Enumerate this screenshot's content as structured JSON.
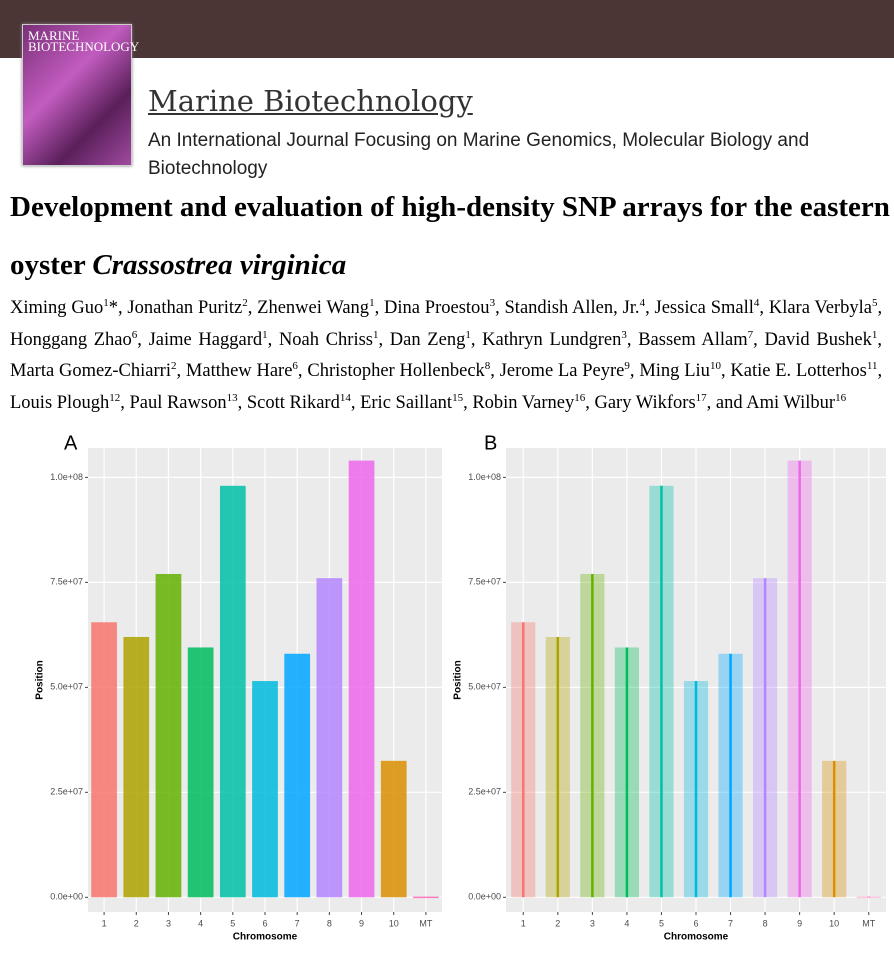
{
  "journal": {
    "cover_title": "MARINE BIOTECHNOLOGY",
    "name": "Marine Biotechnology",
    "subtitle": "An International Journal Focusing on Marine Genomics, Molecular Biology and Biotechnology"
  },
  "title": {
    "text": "Development and evaluation of high-density SNP arrays for the eastern oyster",
    "species": "Crassostrea virginica"
  },
  "authors": [
    {
      "name": "Ximing Guo",
      "aff": "1",
      "mark": "*"
    },
    {
      "name": "Jonathan Puritz",
      "aff": "2"
    },
    {
      "name": "Zhenwei Wang",
      "aff": "1"
    },
    {
      "name": "Dina Proestou",
      "aff": "3"
    },
    {
      "name": "Standish Allen, Jr.",
      "aff": "4"
    },
    {
      "name": "Jessica Small",
      "aff": "4"
    },
    {
      "name": "Klara Verbyla",
      "aff": "5"
    },
    {
      "name": "Honggang Zhao",
      "aff": "6"
    },
    {
      "name": "Jaime Haggard",
      "aff": "1"
    },
    {
      "name": "Noah Chriss",
      "aff": "1"
    },
    {
      "name": "Dan Zeng",
      "aff": "1"
    },
    {
      "name": "Kathryn Lundgren",
      "aff": "3"
    },
    {
      "name": "Bassem Allam",
      "aff": "7"
    },
    {
      "name": "David Bushek",
      "aff": "1"
    },
    {
      "name": "Marta Gomez-Chiarri",
      "aff": "2"
    },
    {
      "name": "Matthew Hare",
      "aff": "6"
    },
    {
      "name": "Christopher Hollenbeck",
      "aff": "8"
    },
    {
      "name": "Jerome La Peyre",
      "aff": "9"
    },
    {
      "name": "Ming Liu",
      "aff": "10"
    },
    {
      "name": "Katie E. Lotterhos",
      "aff": "11"
    },
    {
      "name": "Louis Plough",
      "aff": "12"
    },
    {
      "name": "Paul Rawson",
      "aff": "13"
    },
    {
      "name": "Scott Rikard",
      "aff": "14"
    },
    {
      "name": "Eric Saillant",
      "aff": "15"
    },
    {
      "name": "Robin Varney",
      "aff": "16"
    },
    {
      "name": "Gary Wikfors",
      "aff": "17"
    },
    {
      "name": "Ami Wilbur",
      "aff": "16",
      "prefix": "and"
    }
  ],
  "chart_data": [
    {
      "type": "strip",
      "panel": "A",
      "x_label": "Chromosome",
      "y_label": "Position",
      "categories": [
        "1",
        "2",
        "3",
        "4",
        "5",
        "6",
        "7",
        "8",
        "9",
        "10",
        "MT"
      ],
      "values": [
        65500000,
        62000000,
        77000000,
        59500000,
        98000000,
        51500000,
        58000000,
        76000000,
        104000000,
        32500000,
        170000
      ],
      "colors": [
        "#F8766D",
        "#AEA200",
        "#64B200",
        "#00BD5C",
        "#00C1A7",
        "#00BADE",
        "#00A6FF",
        "#B385FF",
        "#EF67EB",
        "#DB8E00",
        "#FF63B6"
      ],
      "ylim": [
        -3500000,
        107000000
      ],
      "yticks": [
        {
          "value": 0,
          "label": "0.0e+00"
        },
        {
          "value": 25000000,
          "label": "2.5e+07"
        },
        {
          "value": 50000000,
          "label": "5.0e+07"
        },
        {
          "value": 75000000,
          "label": "7.5e+07"
        },
        {
          "value": 100000000,
          "label": "1.0e+08"
        }
      ],
      "grid": true
    },
    {
      "type": "strip",
      "panel": "B",
      "x_label": "Chromosome",
      "y_label": "Position",
      "categories": [
        "1",
        "2",
        "3",
        "4",
        "5",
        "6",
        "7",
        "8",
        "9",
        "10",
        "MT"
      ],
      "values": [
        65500000,
        62000000,
        77000000,
        59500000,
        98000000,
        51500000,
        58000000,
        76000000,
        104000000,
        32500000,
        170000
      ],
      "colors": [
        "#F8766D",
        "#AEA200",
        "#64B200",
        "#00BD5C",
        "#00C1A7",
        "#00BADE",
        "#00A6FF",
        "#B385FF",
        "#EF67EB",
        "#DB8E00",
        "#FF63B6"
      ],
      "ylim": [
        -3500000,
        107000000
      ],
      "yticks": [
        {
          "value": 0,
          "label": "0.0e+00"
        },
        {
          "value": 25000000,
          "label": "2.5e+07"
        },
        {
          "value": 50000000,
          "label": "5.0e+07"
        },
        {
          "value": 75000000,
          "label": "7.5e+07"
        },
        {
          "value": 100000000,
          "label": "1.0e+08"
        }
      ],
      "grid": true
    }
  ]
}
